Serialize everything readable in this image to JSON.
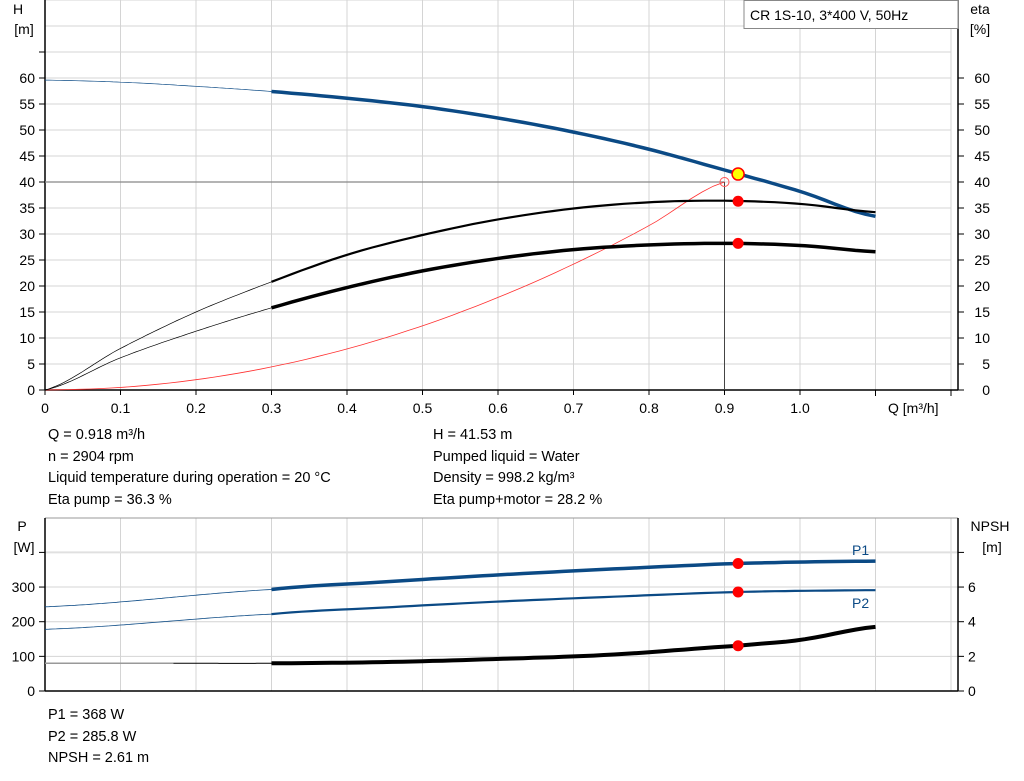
{
  "chart_data": [
    {
      "type": "line",
      "title": "CR 1S-10, 3*400 V, 50Hz",
      "xlabel": "Q [m³/h]",
      "ylabel": "H",
      "ylabel_unit": "[m]",
      "y2label": "eta",
      "y2label_unit": "[%]",
      "xlim": [
        0,
        1.2
      ],
      "ylim": [
        0,
        75
      ],
      "y2lim": [
        0,
        75
      ],
      "grid": true,
      "x_ticks": [
        "0",
        "0.1",
        "0.2",
        "0.3",
        "0.4",
        "0.5",
        "0.6",
        "0.7",
        "0.8",
        "0.9",
        "1.0"
      ],
      "y_ticks": [
        "0",
        "5",
        "10",
        "15",
        "20",
        "25",
        "30",
        "35",
        "40",
        "45",
        "50",
        "55",
        "60"
      ],
      "series": [
        {
          "key": "H",
          "color": "#0b4a85",
          "x": [
            0,
            0.1,
            0.2,
            0.3,
            0.4,
            0.5,
            0.6,
            0.7,
            0.8,
            0.9,
            1.0,
            1.1
          ],
          "y": [
            59.6,
            59.2,
            58.4,
            57.4,
            56.1,
            54.5,
            52.3,
            49.6,
            46.3,
            42.3,
            38.2,
            33.4
          ]
        },
        {
          "key": "eta_pump",
          "color": "#000000",
          "x": [
            0,
            0.1,
            0.2,
            0.3,
            0.4,
            0.5,
            0.6,
            0.7,
            0.8,
            0.9,
            1.0,
            1.1
          ],
          "y": [
            0,
            8.0,
            15.0,
            20.8,
            26.0,
            29.8,
            32.8,
            34.9,
            36.1,
            36.4,
            35.8,
            34.2
          ]
        },
        {
          "key": "eta_pump_motor",
          "color": "#000000",
          "x": [
            0,
            0.1,
            0.2,
            0.3,
            0.4,
            0.5,
            0.6,
            0.7,
            0.8,
            0.9,
            1.0,
            1.1
          ],
          "y": [
            0,
            6.2,
            11.3,
            15.8,
            19.7,
            22.9,
            25.3,
            27.0,
            27.9,
            28.2,
            27.8,
            26.6
          ]
        },
        {
          "key": "system_curve",
          "color": "#ff0000",
          "x": [
            0,
            0.1,
            0.2,
            0.3,
            0.4,
            0.5,
            0.6,
            0.7,
            0.8,
            0.9
          ],
          "y": [
            0,
            0.49,
            1.98,
            4.44,
            7.9,
            12.35,
            17.8,
            24.2,
            31.6,
            40.0
          ]
        }
      ],
      "duty_point": {
        "Q": 0.9,
        "H": 40
      },
      "operating_point": {
        "Q": 0.918,
        "H": 41.53,
        "eta_pump": 36.3,
        "eta_pump_motor": 28.2
      }
    },
    {
      "type": "line",
      "ylabel": "P",
      "ylabel_unit": "[W]",
      "y2label": "NPSH",
      "y2label_unit": "[m]",
      "xlim": [
        0,
        1.2
      ],
      "ylim": [
        0,
        480
      ],
      "y2lim": [
        0,
        9.6
      ],
      "grid": true,
      "y_ticks": [
        "0",
        "100",
        "200",
        "300"
      ],
      "y2_ticks": [
        "0",
        "2",
        "4",
        "6"
      ],
      "series": [
        {
          "key": "P1",
          "name": "P1",
          "color": "#0b4a85",
          "x": [
            0,
            0.3,
            0.45,
            0.6,
            0.75,
            0.918,
            1.1
          ],
          "y": [
            243,
            293,
            315,
            335,
            352,
            368,
            375
          ]
        },
        {
          "key": "P2",
          "name": "P2",
          "color": "#0b4a85",
          "x": [
            0,
            0.3,
            0.45,
            0.6,
            0.75,
            0.918,
            1.1
          ],
          "y": [
            178,
            222,
            241,
            258,
            272,
            285.8,
            291
          ]
        },
        {
          "key": "NPSH",
          "color": "#000000",
          "x": [
            0,
            0.17,
            0.3,
            0.45,
            0.6,
            0.75,
            0.918,
            1.0,
            1.1
          ],
          "y": [
            1.6,
            1.6,
            1.6,
            1.67,
            1.85,
            2.1,
            2.61,
            2.95,
            3.7
          ]
        }
      ],
      "operating_point": {
        "Q": 0.918,
        "P1": 368,
        "P2": 285.8,
        "NPSH": 2.61
      }
    }
  ],
  "info": {
    "left": [
      "Q = 0.918 m³/h",
      "n = 2904 rpm",
      "Liquid temperature during operation = 20 °C",
      "Eta pump = 36.3 %"
    ],
    "right": [
      "H = 41.53 m",
      "Pumped liquid = Water",
      "Density = 998.2 kg/m³",
      "Eta pump+motor = 28.2 %"
    ],
    "bottom": [
      "P1 = 368 W",
      "P2 = 285.8 W",
      "NPSH = 2.61 m"
    ]
  },
  "colors": {
    "accent_blue": "#0b4a85",
    "point_red": "#ff0000",
    "point_yellow": "#ffff00",
    "grid": "#d4d4d4"
  }
}
